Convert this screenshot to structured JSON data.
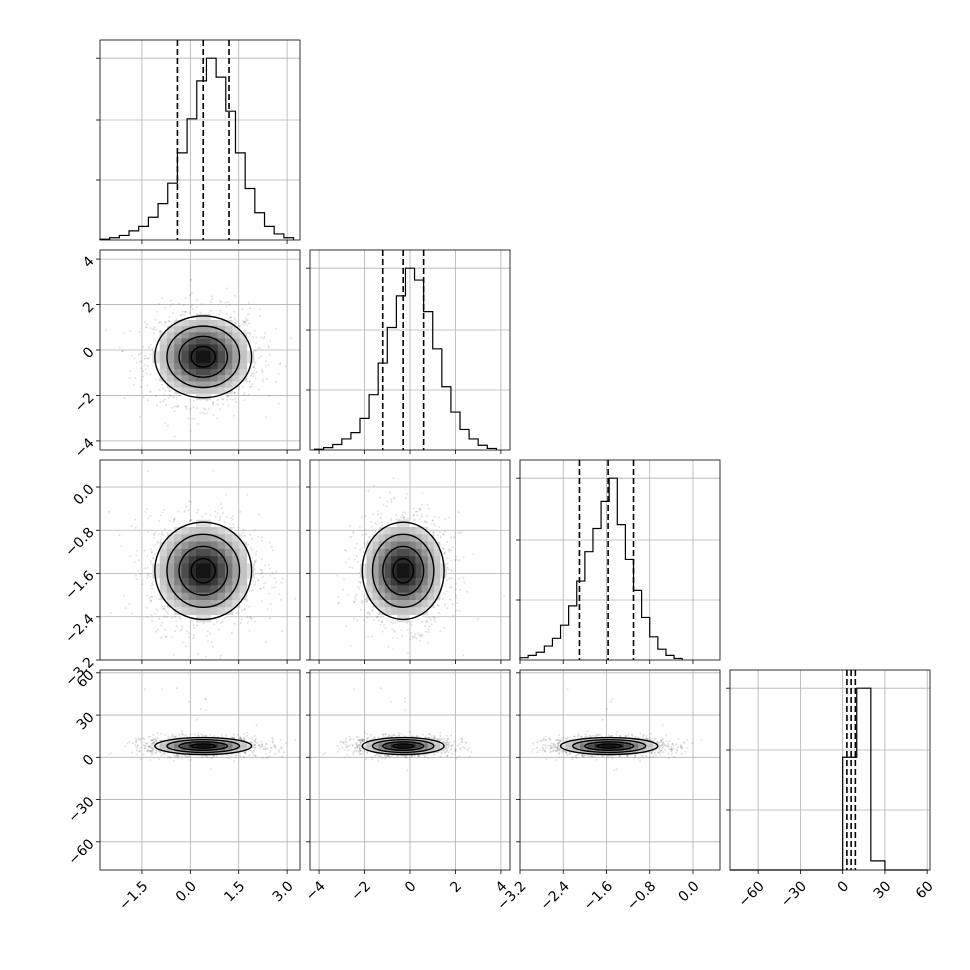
{
  "chart_data": {
    "type": "corner",
    "title": "",
    "parameters": 4,
    "grid": true,
    "ranges": [
      [
        -2.8,
        3.4
      ],
      [
        -4.4,
        4.4
      ],
      [
        -3.2,
        0.5
      ],
      [
        -80,
        62
      ]
    ],
    "ticks": [
      [
        -1.5,
        0.0,
        1.5,
        3.0
      ],
      [
        -4,
        -2,
        0,
        2,
        4
      ],
      [
        -3.2,
        -2.4,
        -1.6,
        -0.8,
        0.0
      ],
      [
        -60,
        -30,
        0,
        30,
        60
      ]
    ],
    "tick_labels": [
      [
        "−1.5",
        "0.0",
        "1.5",
        "3.0"
      ],
      [
        "−4",
        "−2",
        "0",
        "2",
        "4"
      ],
      [
        "−3.2",
        "−2.4",
        "−1.6",
        "−0.8",
        "0.0"
      ],
      [
        "−60",
        "−30",
        "0",
        "30",
        "60"
      ]
    ],
    "marginals": [
      {
        "param": 0,
        "quantiles": [
          -0.4,
          0.4,
          1.2
        ],
        "bin_edges": [
          -2.8,
          -2.5,
          -2.2,
          -1.9,
          -1.6,
          -1.3,
          -1.0,
          -0.7,
          -0.4,
          -0.1,
          0.2,
          0.5,
          0.8,
          1.1,
          1.4,
          1.7,
          2.0,
          2.3,
          2.6,
          2.9,
          3.2
        ],
        "counts": [
          1,
          3,
          6,
          12,
          18,
          30,
          48,
          75,
          115,
          160,
          210,
          240,
          215,
          170,
          115,
          68,
          36,
          18,
          8,
          3
        ]
      },
      {
        "param": 1,
        "quantiles": [
          -1.2,
          -0.3,
          0.6
        ],
        "bin_edges": [
          -4.2,
          -3.8,
          -3.4,
          -3.0,
          -2.6,
          -2.2,
          -1.8,
          -1.4,
          -1.0,
          -0.6,
          -0.2,
          0.2,
          0.6,
          1.0,
          1.4,
          1.8,
          2.2,
          2.6,
          3.0,
          3.4,
          3.8
        ],
        "counts": [
          1,
          3,
          7,
          14,
          22,
          40,
          70,
          110,
          155,
          195,
          230,
          215,
          175,
          128,
          80,
          48,
          26,
          14,
          6,
          2
        ]
      },
      {
        "param": 2,
        "quantiles": [
          -2.1,
          -1.57,
          -1.1
        ],
        "bin_edges": [
          -3.2,
          -3.05,
          -2.9,
          -2.75,
          -2.6,
          -2.45,
          -2.3,
          -2.15,
          -2.0,
          -1.85,
          -1.7,
          -1.55,
          -1.4,
          -1.25,
          -1.1,
          -0.95,
          -0.8,
          -0.65,
          -0.5,
          -0.35,
          -0.2
        ],
        "counts": [
          3,
          6,
          10,
          18,
          28,
          45,
          70,
          102,
          140,
          170,
          205,
          235,
          175,
          130,
          90,
          55,
          30,
          14,
          6,
          2
        ]
      },
      {
        "param": 3,
        "quantiles": [
          3.0,
          6.0,
          9.0
        ],
        "bin_edges": [
          -80,
          -70,
          -60,
          -50,
          -40,
          -30,
          -20,
          -10,
          0,
          10,
          20,
          30,
          40,
          50,
          60
        ],
        "counts": [
          0,
          0,
          0,
          0,
          0,
          0,
          0,
          0,
          62,
          100,
          5,
          0,
          0,
          0
        ]
      }
    ],
    "joints": [
      {
        "x_param": 0,
        "y_param": 1,
        "x_center": 0.4,
        "y_center": -0.3,
        "x_sigma": 0.75,
        "y_sigma": 0.9
      },
      {
        "x_param": 0,
        "y_param": 2,
        "x_center": 0.4,
        "y_center": -1.55,
        "x_sigma": 0.75,
        "y_sigma": 0.45
      },
      {
        "x_param": 1,
        "y_param": 2,
        "x_center": -0.3,
        "y_center": -1.55,
        "x_sigma": 0.9,
        "y_sigma": 0.45
      },
      {
        "x_param": 0,
        "y_param": 3,
        "x_center": 0.4,
        "y_center": 8,
        "x_sigma": 0.75,
        "y_sigma": 3
      },
      {
        "x_param": 1,
        "y_param": 3,
        "x_center": -0.3,
        "y_center": 8,
        "x_sigma": 0.9,
        "y_sigma": 3
      },
      {
        "x_param": 2,
        "y_param": 3,
        "x_center": -1.55,
        "y_center": 8,
        "x_sigma": 0.45,
        "y_sigma": 3
      }
    ]
  }
}
